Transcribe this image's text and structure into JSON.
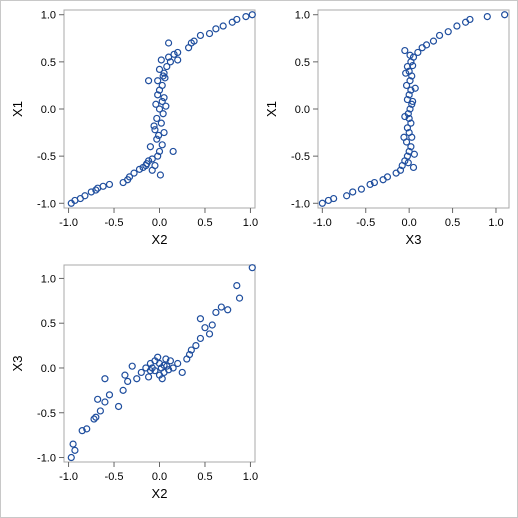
{
  "chart_data": [
    {
      "type": "scatter",
      "xlabel": "X2",
      "ylabel": "X1",
      "xlim": [
        -1.05,
        1.05
      ],
      "ylim": [
        -1.05,
        1.05
      ],
      "xticks": [
        "-1.0",
        "-0.5",
        "0.0",
        "0.5",
        "1.0"
      ],
      "yticks": [
        "-1.0",
        "-0.5",
        "0.0",
        "0.5",
        "1.0"
      ],
      "color": "#1f4e9e",
      "points": [
        [
          -0.97,
          -1.0
        ],
        [
          -0.93,
          -0.97
        ],
        [
          -0.87,
          -0.95
        ],
        [
          -0.82,
          -0.92
        ],
        [
          -0.75,
          -0.88
        ],
        [
          -0.7,
          -0.86
        ],
        [
          -0.68,
          -0.84
        ],
        [
          -0.62,
          -0.82
        ],
        [
          -0.55,
          -0.8
        ],
        [
          -0.4,
          -0.78
        ],
        [
          -0.35,
          -0.75
        ],
        [
          -0.33,
          -0.72
        ],
        [
          -0.28,
          -0.68
        ],
        [
          -0.22,
          -0.64
        ],
        [
          -0.18,
          -0.62
        ],
        [
          -0.14,
          -0.58
        ],
        [
          -0.12,
          -0.55
        ],
        [
          -0.08,
          -0.53
        ],
        [
          -0.05,
          -0.6
        ],
        [
          -0.02,
          -0.5
        ],
        [
          0.0,
          -0.45
        ],
        [
          -0.1,
          -0.4
        ],
        [
          0.03,
          -0.38
        ],
        [
          -0.03,
          -0.32
        ],
        [
          0.05,
          -0.25
        ],
        [
          -0.05,
          -0.22
        ],
        [
          0.02,
          -0.15
        ],
        [
          -0.03,
          -0.1
        ],
        [
          0.04,
          -0.05
        ],
        [
          0.0,
          0.0
        ],
        [
          -0.04,
          0.05
        ],
        [
          0.03,
          0.08
        ],
        [
          0.05,
          0.12
        ],
        [
          -0.02,
          0.15
        ],
        [
          0.0,
          0.2
        ],
        [
          0.03,
          0.25
        ],
        [
          -0.02,
          0.3
        ],
        [
          0.06,
          0.33
        ],
        [
          0.05,
          0.38
        ],
        [
          0.0,
          0.42
        ],
        [
          0.08,
          0.45
        ],
        [
          0.12,
          0.5
        ],
        [
          0.1,
          0.55
        ],
        [
          0.16,
          0.58
        ],
        [
          0.2,
          0.6
        ],
        [
          0.32,
          0.65
        ],
        [
          0.35,
          0.7
        ],
        [
          0.38,
          0.72
        ],
        [
          0.45,
          0.78
        ],
        [
          0.55,
          0.8
        ],
        [
          0.62,
          0.85
        ],
        [
          0.7,
          0.88
        ],
        [
          0.8,
          0.92
        ],
        [
          0.85,
          0.95
        ],
        [
          0.95,
          0.98
        ],
        [
          1.02,
          1.0
        ],
        [
          -0.12,
          0.3
        ],
        [
          0.15,
          -0.45
        ],
        [
          -0.15,
          -0.6
        ],
        [
          0.1,
          0.7
        ],
        [
          0.2,
          0.52
        ],
        [
          -0.08,
          -0.65
        ],
        [
          0.02,
          0.52
        ],
        [
          -0.01,
          -0.28
        ],
        [
          0.04,
          0.35
        ],
        [
          -0.06,
          -0.18
        ],
        [
          0.07,
          0.03
        ],
        [
          0.01,
          -0.7
        ]
      ]
    },
    {
      "type": "scatter",
      "xlabel": "X3",
      "ylabel": "X1",
      "xlim": [
        -1.05,
        1.15
      ],
      "ylim": [
        -1.05,
        1.05
      ],
      "xticks": [
        "-1.0",
        "-0.5",
        "0.0",
        "0.5",
        "1.0"
      ],
      "yticks": [
        "-1.0",
        "-0.5",
        "0.0",
        "0.5",
        "1.0"
      ],
      "color": "#1f4e9e",
      "points": [
        [
          -1.0,
          -1.0
        ],
        [
          -0.93,
          -0.97
        ],
        [
          -0.87,
          -0.95
        ],
        [
          -0.72,
          -0.92
        ],
        [
          -0.65,
          -0.88
        ],
        [
          -0.55,
          -0.85
        ],
        [
          -0.45,
          -0.8
        ],
        [
          -0.4,
          -0.78
        ],
        [
          -0.3,
          -0.75
        ],
        [
          -0.25,
          -0.72
        ],
        [
          -0.15,
          -0.68
        ],
        [
          -0.1,
          -0.65
        ],
        [
          -0.08,
          -0.6
        ],
        [
          -0.05,
          -0.55
        ],
        [
          -0.02,
          -0.5
        ],
        [
          0.0,
          -0.45
        ],
        [
          0.02,
          -0.4
        ],
        [
          -0.03,
          -0.35
        ],
        [
          0.03,
          -0.3
        ],
        [
          0.0,
          -0.25
        ],
        [
          -0.02,
          -0.2
        ],
        [
          0.02,
          -0.15
        ],
        [
          0.0,
          -0.1
        ],
        [
          -0.01,
          -0.05
        ],
        [
          0.01,
          0.0
        ],
        [
          0.03,
          0.05
        ],
        [
          -0.02,
          0.1
        ],
        [
          0.0,
          0.15
        ],
        [
          0.02,
          0.2
        ],
        [
          -0.03,
          0.25
        ],
        [
          0.01,
          0.3
        ],
        [
          0.03,
          0.35
        ],
        [
          0.0,
          0.4
        ],
        [
          -0.02,
          0.45
        ],
        [
          0.02,
          0.5
        ],
        [
          0.05,
          0.55
        ],
        [
          0.1,
          0.6
        ],
        [
          0.15,
          0.65
        ],
        [
          0.2,
          0.68
        ],
        [
          0.28,
          0.72
        ],
        [
          0.35,
          0.78
        ],
        [
          0.45,
          0.82
        ],
        [
          0.55,
          0.88
        ],
        [
          0.65,
          0.92
        ],
        [
          0.7,
          0.95
        ],
        [
          0.9,
          0.98
        ],
        [
          1.1,
          1.0
        ],
        [
          -0.05,
          0.62
        ],
        [
          0.05,
          -0.62
        ],
        [
          0.06,
          -0.48
        ],
        [
          -0.04,
          0.38
        ],
        [
          0.04,
          0.08
        ],
        [
          -0.05,
          -0.08
        ],
        [
          0.07,
          0.22
        ],
        [
          -0.06,
          -0.3
        ],
        [
          0.01,
          0.57
        ],
        [
          -0.01,
          -0.57
        ],
        [
          0.04,
          0.46
        ]
      ]
    },
    {
      "type": "scatter",
      "xlabel": "X2",
      "ylabel": "X3",
      "xlim": [
        -1.05,
        1.05
      ],
      "ylim": [
        -1.05,
        1.15
      ],
      "xticks": [
        "-1.0",
        "-0.5",
        "0.0",
        "0.5",
        "1.0"
      ],
      "yticks": [
        "-1.0",
        "-0.5",
        "0.0",
        "0.5",
        "1.0"
      ],
      "color": "#1f4e9e",
      "points": [
        [
          -0.97,
          -1.0
        ],
        [
          -0.95,
          -0.85
        ],
        [
          -0.93,
          -0.92
        ],
        [
          -0.85,
          -0.7
        ],
        [
          -0.8,
          -0.68
        ],
        [
          -0.72,
          -0.57
        ],
        [
          -0.7,
          -0.55
        ],
        [
          -0.65,
          -0.48
        ],
        [
          -0.68,
          -0.35
        ],
        [
          -0.6,
          -0.38
        ],
        [
          -0.55,
          -0.3
        ],
        [
          -0.45,
          -0.43
        ],
        [
          -0.4,
          -0.25
        ],
        [
          -0.35,
          -0.15
        ],
        [
          -0.38,
          -0.08
        ],
        [
          -0.25,
          -0.12
        ],
        [
          -0.2,
          -0.05
        ],
        [
          -0.15,
          0.0
        ],
        [
          -0.1,
          0.05
        ],
        [
          -0.05,
          0.08
        ],
        [
          0.0,
          0.05
        ],
        [
          0.05,
          0.03
        ],
        [
          0.1,
          -0.02
        ],
        [
          0.15,
          0.0
        ],
        [
          0.05,
          -0.05
        ],
        [
          -0.05,
          -0.03
        ],
        [
          0.0,
          -0.08
        ],
        [
          0.08,
          0.02
        ],
        [
          -0.08,
          0.0
        ],
        [
          0.02,
          0.0
        ],
        [
          0.2,
          0.05
        ],
        [
          0.3,
          0.1
        ],
        [
          0.35,
          0.2
        ],
        [
          0.4,
          0.25
        ],
        [
          0.45,
          0.33
        ],
        [
          0.5,
          0.45
        ],
        [
          0.55,
          0.38
        ],
        [
          0.58,
          0.48
        ],
        [
          0.62,
          0.62
        ],
        [
          0.68,
          0.68
        ],
        [
          0.75,
          0.65
        ],
        [
          0.85,
          0.92
        ],
        [
          0.88,
          0.78
        ],
        [
          1.02,
          1.12
        ],
        [
          -0.12,
          -0.1
        ],
        [
          0.12,
          0.08
        ],
        [
          -0.02,
          0.12
        ],
        [
          0.03,
          -0.12
        ],
        [
          -0.3,
          0.02
        ],
        [
          0.25,
          -0.05
        ],
        [
          0.33,
          0.15
        ],
        [
          -0.6,
          -0.12
        ],
        [
          0.45,
          0.55
        ],
        [
          -0.1,
          -0.03
        ],
        [
          0.07,
          0.1
        ]
      ]
    }
  ]
}
